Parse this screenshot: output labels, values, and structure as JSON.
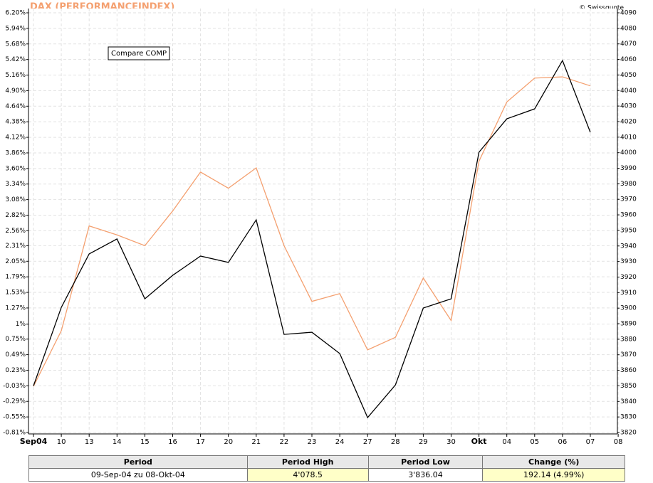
{
  "chart_data": {
    "type": "line",
    "title": "DAX (PERFORMANCEINDEX)",
    "source": "© Swissquote",
    "categories": [
      "Sep04",
      "10",
      "13",
      "14",
      "15",
      "16",
      "17",
      "20",
      "21",
      "22",
      "23",
      "24",
      "27",
      "28",
      "29",
      "30",
      "Okt",
      "04",
      "05",
      "06",
      "07",
      "08"
    ],
    "series": [
      {
        "color": "#000000",
        "axis": "y2",
        "values": [
          3850,
          3900.5,
          3934.9,
          3944.5,
          3906,
          3921.1,
          3933.5,
          3929.4,
          3956.8,
          3883.1,
          3884.5,
          3870.8,
          3829.6,
          3850.6,
          3900.1,
          3906,
          4000.3,
          4021.8,
          4028.2,
          4059.3,
          4013.1,
          null
        ]
      },
      {
        "name": "Compare COMP",
        "color": "#f4a070",
        "values": [
          -0.04,
          0.89,
          2.64,
          2.49,
          2.31,
          2.89,
          3.54,
          3.27,
          3.61,
          2.31,
          1.38,
          1.51,
          0.57,
          0.78,
          1.77,
          1.06,
          3.72,
          4.71,
          5.11,
          5.13,
          4.98,
          null
        ]
      }
    ],
    "ylim": [
      -0.81,
      6.2
    ],
    "yticks": [
      {
        "value": 6.2,
        "label": "6.20%"
      },
      {
        "value": 5.94,
        "label": "5.94%"
      },
      {
        "value": 5.68,
        "label": "5.68%"
      },
      {
        "value": 5.42,
        "label": "5.42%"
      },
      {
        "value": 5.16,
        "label": "5.16%"
      },
      {
        "value": 4.9,
        "label": "4.90%"
      },
      {
        "value": 4.64,
        "label": "4.64%"
      },
      {
        "value": 4.38,
        "label": "4.38%"
      },
      {
        "value": 4.12,
        "label": "4.12%"
      },
      {
        "value": 3.86,
        "label": "3.86%"
      },
      {
        "value": 3.6,
        "label": "3.60%"
      },
      {
        "value": 3.34,
        "label": "3.34%"
      },
      {
        "value": 3.08,
        "label": "3.08%"
      },
      {
        "value": 2.82,
        "label": "2.82%"
      },
      {
        "value": 2.56,
        "label": "2.56%"
      },
      {
        "value": 2.31,
        "label": "2.31%"
      },
      {
        "value": 2.05,
        "label": "2.05%"
      },
      {
        "value": 1.79,
        "label": "1.79%"
      },
      {
        "value": 1.53,
        "label": "1.53%"
      },
      {
        "value": 1.27,
        "label": "1.27%"
      },
      {
        "value": 1,
        "label": "1%"
      },
      {
        "value": 0.75,
        "label": "0.75%"
      },
      {
        "value": 0.49,
        "label": "0.49%"
      },
      {
        "value": 0.23,
        "label": "0.23%"
      },
      {
        "value": -0.03,
        "label": "-0.03%"
      },
      {
        "value": -0.29,
        "label": "-0.29%"
      },
      {
        "value": -0.55,
        "label": "-0.55%"
      },
      {
        "value": -0.81,
        "label": "-0.81%"
      }
    ],
    "y2lim": [
      3820,
      4090
    ],
    "y2ticks": [
      4090,
      4080,
      4070,
      4060,
      4050,
      4040,
      4030,
      4020,
      4010,
      4000,
      3990,
      3980,
      3970,
      3960,
      3950,
      3940,
      3930,
      3920,
      3910,
      3900,
      3890,
      3880,
      3870,
      3860,
      3850,
      3840,
      3830,
      3820
    ],
    "grid": true
  },
  "table": {
    "header": [
      "Period",
      "Period High",
      "Period Low",
      "Change (%)"
    ],
    "rows": [
      [
        "09-Sep-04 zu 08-Okt-04",
        "4'078.5",
        "3'836.04",
        "192.14 (4.99%)"
      ]
    ]
  }
}
